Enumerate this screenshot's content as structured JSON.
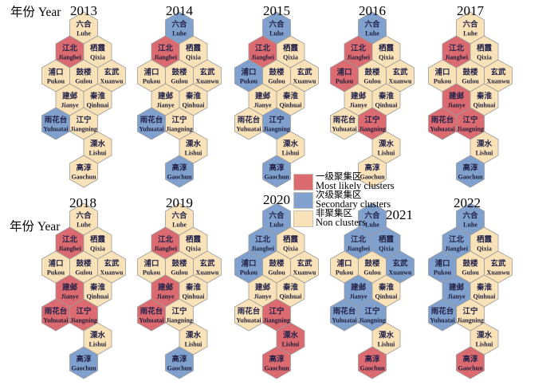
{
  "axis": {
    "label": "年份 Year"
  },
  "legend": {
    "items": [
      {
        "id": "most",
        "zh": "一级聚集区",
        "en": "Most likely clusters",
        "color": "#dc6a71"
      },
      {
        "id": "secondary",
        "zh": "次级聚集区",
        "en": "Secondary clusters",
        "color": "#80a0ce"
      },
      {
        "id": "non",
        "zh": "非聚集区",
        "en": "Non clusters",
        "color": "#f9e2b7"
      }
    ]
  },
  "colors": {
    "most": "#dc6a71",
    "secondary": "#80a0ce",
    "non": "#f9e2b7",
    "hex_border": "#9b9b9b",
    "text": "#24244a"
  },
  "districts": [
    {
      "id": "luhe",
      "zh": "六合",
      "en": "Luhe",
      "u": 2,
      "r": 0
    },
    {
      "id": "jiangbei",
      "zh": "江北",
      "en": "Jiangbei",
      "u": 1,
      "r": 1
    },
    {
      "id": "qixia",
      "zh": "栖霞",
      "en": "Qixia",
      "u": 3,
      "r": 1
    },
    {
      "id": "pukou",
      "zh": "浦口",
      "en": "Pukou",
      "u": 0,
      "r": 2
    },
    {
      "id": "gulou",
      "zh": "鼓楼",
      "en": "Gulou",
      "u": 2,
      "r": 2
    },
    {
      "id": "xuanwu",
      "zh": "玄武",
      "en": "Xuanwu",
      "u": 4,
      "r": 2
    },
    {
      "id": "jianye",
      "zh": "建邺",
      "en": "Jianye",
      "u": 1,
      "r": 3
    },
    {
      "id": "qinhuai",
      "zh": "秦淮",
      "en": "Qinhuai",
      "u": 3,
      "r": 3
    },
    {
      "id": "yuhuatai",
      "zh": "雨花台",
      "en": "Yuhuatai",
      "u": 0,
      "r": 4
    },
    {
      "id": "jiangning",
      "zh": "江宁",
      "en": "Jiangning",
      "u": 2,
      "r": 4
    },
    {
      "id": "lishui",
      "zh": "溧水",
      "en": "Lishui",
      "u": 3,
      "r": 5
    },
    {
      "id": "gaochun",
      "zh": "高淳",
      "en": "Gaochun",
      "u": 2,
      "r": 6
    }
  ],
  "chart_data": {
    "type": "heatmap",
    "x": [
      "2013",
      "2014",
      "2015",
      "2016",
      "2017",
      "2018",
      "2019",
      "2020",
      "2021",
      "2022"
    ],
    "categories": [
      "六合 Luhe",
      "江北 Jiangbei",
      "栖霞 Qixia",
      "浦口 Pukou",
      "鼓楼 Gulou",
      "玄武 Xuanwu",
      "建邺 Jianye",
      "秦淮 Qinhuai",
      "雨花台 Yuhuatai",
      "江宁 Jiangning",
      "溧水 Lishui",
      "高淳 Gaochun"
    ],
    "levels": {
      "most": "一级聚集区 Most likely clusters",
      "secondary": "次级聚集区 Secondary clusters",
      "non": "非聚集区 Non clusters"
    },
    "values": {
      "2013": {
        "luhe": "non",
        "jiangbei": "most",
        "qixia": "non",
        "pukou": "non",
        "gulou": "non",
        "xuanwu": "non",
        "jianye": "non",
        "qinhuai": "non",
        "yuhuatai": "secondary",
        "jiangning": "non",
        "lishui": "non",
        "gaochun": "non"
      },
      "2014": {
        "luhe": "secondary",
        "jiangbei": "most",
        "qixia": "non",
        "pukou": "non",
        "gulou": "non",
        "xuanwu": "non",
        "jianye": "non",
        "qinhuai": "non",
        "yuhuatai": "secondary",
        "jiangning": "non",
        "lishui": "non",
        "gaochun": "secondary"
      },
      "2015": {
        "luhe": "secondary",
        "jiangbei": "most",
        "qixia": "non",
        "pukou": "secondary",
        "gulou": "non",
        "xuanwu": "non",
        "jianye": "non",
        "qinhuai": "non",
        "yuhuatai": "non",
        "jiangning": "secondary",
        "lishui": "non",
        "gaochun": "secondary"
      },
      "2016": {
        "luhe": "secondary",
        "jiangbei": "most",
        "qixia": "non",
        "pukou": "most",
        "gulou": "non",
        "xuanwu": "non",
        "jianye": "non",
        "qinhuai": "non",
        "yuhuatai": "non",
        "jiangning": "most",
        "lishui": "non",
        "gaochun": "non"
      },
      "2017": {
        "luhe": "non",
        "jiangbei": "most",
        "qixia": "non",
        "pukou": "non",
        "gulou": "non",
        "xuanwu": "non",
        "jianye": "most",
        "qinhuai": "non",
        "yuhuatai": "most",
        "jiangning": "most",
        "lishui": "non",
        "gaochun": "secondary"
      },
      "2018": {
        "luhe": "non",
        "jiangbei": "most",
        "qixia": "non",
        "pukou": "non",
        "gulou": "non",
        "xuanwu": "non",
        "jianye": "most",
        "qinhuai": "non",
        "yuhuatai": "most",
        "jiangning": "most",
        "lishui": "non",
        "gaochun": "secondary"
      },
      "2019": {
        "luhe": "non",
        "jiangbei": "most",
        "qixia": "non",
        "pukou": "non",
        "gulou": "non",
        "xuanwu": "non",
        "jianye": "most",
        "qinhuai": "non",
        "yuhuatai": "most",
        "jiangning": "non",
        "lishui": "non",
        "gaochun": "secondary"
      },
      "2020": {
        "luhe": "secondary",
        "jiangbei": "secondary",
        "qixia": "non",
        "pukou": "secondary",
        "gulou": "non",
        "xuanwu": "non",
        "jianye": "non",
        "qinhuai": "non",
        "yuhuatai": "non",
        "jiangning": "most",
        "lishui": "most",
        "gaochun": "most"
      },
      "2021": {
        "luhe": "secondary",
        "jiangbei": "secondary",
        "qixia": "secondary",
        "pukou": "non",
        "gulou": "non",
        "xuanwu": "secondary",
        "jianye": "secondary",
        "qinhuai": "non",
        "yuhuatai": "secondary",
        "jiangning": "secondary",
        "lishui": "non",
        "gaochun": "most"
      },
      "2022": {
        "luhe": "secondary",
        "jiangbei": "secondary",
        "qixia": "non",
        "pukou": "secondary",
        "gulou": "non",
        "xuanwu": "non",
        "jianye": "secondary",
        "qinhuai": "non",
        "yuhuatai": "secondary",
        "jiangning": "non",
        "lishui": "non",
        "gaochun": "most"
      }
    }
  }
}
